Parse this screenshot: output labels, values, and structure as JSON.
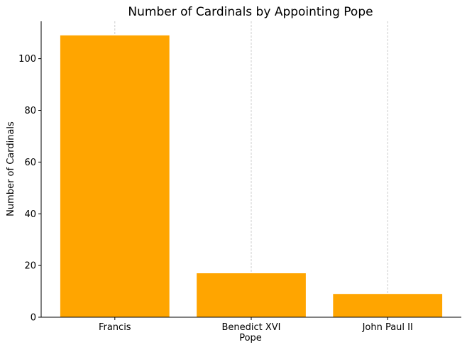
{
  "chart_data": {
    "type": "bar",
    "title": "Number of Cardinals by Appointing Pope",
    "xlabel": "Pope",
    "ylabel": "Number of Cardinals",
    "categories": [
      "Francis",
      "Benedict XVI",
      "John Paul II"
    ],
    "values": [
      109,
      17,
      9
    ],
    "ylim": [
      0,
      114.45
    ],
    "yticks": [
      0,
      20,
      40,
      60,
      80,
      100
    ],
    "grid": "x-axis dashed at category centers",
    "bar_color": "#FFA500",
    "grid_color": "#cccccc",
    "legend": "none"
  }
}
